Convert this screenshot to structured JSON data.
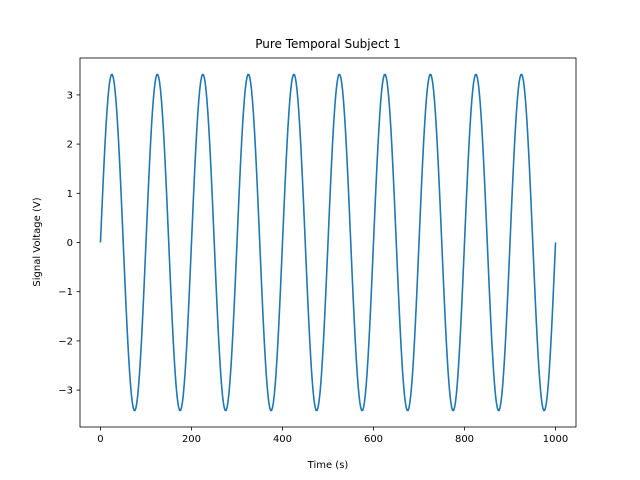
{
  "chart_data": {
    "type": "line",
    "title": "Pure Temporal Subject 1",
    "xlabel": "Time (s)",
    "ylabel": "Signal Voltage (V)",
    "xlim": [
      -45,
      1045
    ],
    "ylim": [
      -3.75,
      3.75
    ],
    "xticks": [
      0,
      200,
      400,
      600,
      800,
      1000
    ],
    "yticks": [
      -3,
      -2,
      -1,
      0,
      1,
      2,
      3
    ],
    "grid": false,
    "series": [
      {
        "color": "#1f77b4",
        "amplitude": 3.42,
        "period": 100,
        "x_start": 0,
        "x_end": 1000,
        "sample_step": 2
      }
    ]
  }
}
